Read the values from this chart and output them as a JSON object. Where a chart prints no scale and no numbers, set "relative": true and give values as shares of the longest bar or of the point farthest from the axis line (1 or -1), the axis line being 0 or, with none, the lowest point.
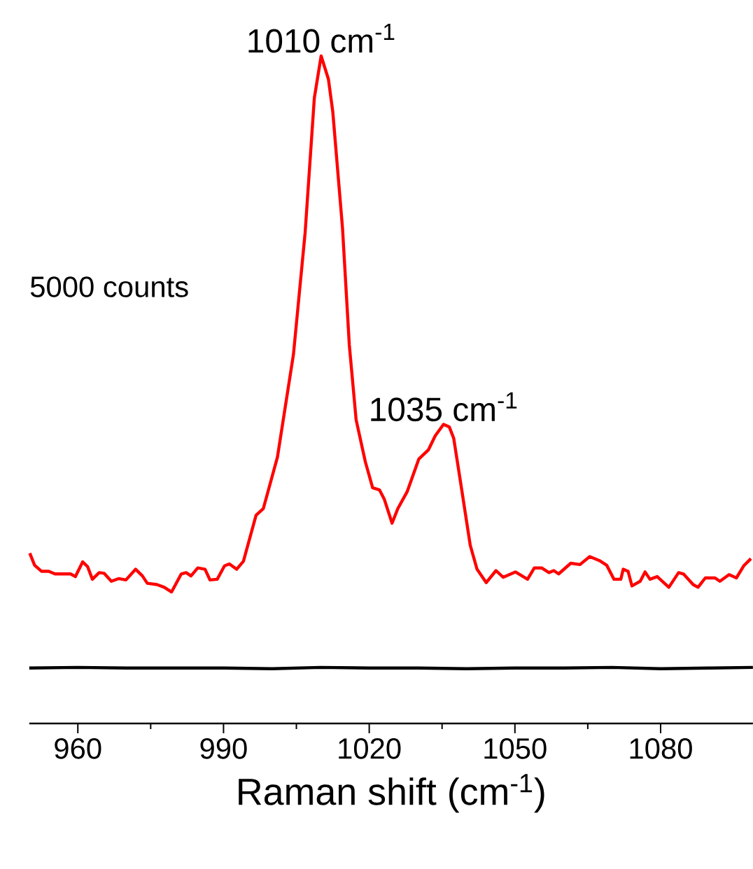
{
  "chart_data": {
    "type": "line",
    "xlabel": "Raman shift (cm$^{-1}$)",
    "relative": true,
    "xlim": [
      950,
      1099
    ],
    "xticks": [
      960,
      990,
      1020,
      1050,
      1080
    ],
    "annotations": [
      {
        "text": "1010 cm$^{-1}$",
        "x": 1010.1,
        "y": 1.0
      },
      {
        "text": "1035 cm$^{-1}$",
        "x": 1035.3,
        "y": 0.448
      },
      "5000 counts"
    ],
    "series": [
      {
        "color": "#ff0000",
        "x": [
          950.1,
          951.1,
          952.5,
          954.0,
          955.3,
          958.5,
          959.5,
          961.0,
          962.0,
          963.0,
          964.4,
          965.4,
          966.9,
          968.4,
          969.9,
          971.9,
          973.3,
          974.3,
          976.3,
          977.8,
          979.3,
          981.3,
          982.3,
          983.3,
          984.7,
          986.2,
          987.2,
          988.7,
          990.2,
          991.2,
          992.7,
          994.1,
          996.7,
          998.2,
          1001.1,
          1004.4,
          1006.8,
          1008.7,
          1010.1,
          1011.6,
          1012.5,
          1014.5,
          1015.9,
          1017.3,
          1019.2,
          1020.7,
          1022.1,
          1023.1,
          1024.7,
          1025.9,
          1027.8,
          1030.2,
          1032.2,
          1033.6,
          1035.3,
          1036.5,
          1037.4,
          1038.9,
          1040.8,
          1042.2,
          1044.1,
          1046.1,
          1047.6,
          1050.1,
          1052.6,
          1054.0,
          1055.5,
          1057.0,
          1058.0,
          1059.0,
          1061.5,
          1063.4,
          1065.4,
          1067.4,
          1068.9,
          1070.4,
          1071.8,
          1072.3,
          1073.3,
          1074.1,
          1075.8,
          1076.8,
          1077.8,
          1079.3,
          1081.7,
          1083.7,
          1084.7,
          1086.7,
          1087.7,
          1089.2,
          1091.2,
          1092.2,
          1094.1,
          1095.6,
          1097.1,
          1098.6
        ],
        "values": [
          0.255,
          0.237,
          0.228,
          0.228,
          0.224,
          0.224,
          0.22,
          0.242,
          0.235,
          0.216,
          0.226,
          0.225,
          0.213,
          0.217,
          0.215,
          0.231,
          0.221,
          0.21,
          0.208,
          0.204,
          0.197,
          0.224,
          0.226,
          0.221,
          0.233,
          0.231,
          0.215,
          0.216,
          0.236,
          0.239,
          0.231,
          0.243,
          0.312,
          0.322,
          0.399,
          0.553,
          0.735,
          0.937,
          1.0,
          0.965,
          0.916,
          0.742,
          0.567,
          0.455,
          0.392,
          0.353,
          0.35,
          0.336,
          0.3,
          0.322,
          0.347,
          0.396,
          0.41,
          0.431,
          0.448,
          0.444,
          0.427,
          0.357,
          0.267,
          0.231,
          0.211,
          0.229,
          0.219,
          0.227,
          0.216,
          0.233,
          0.233,
          0.226,
          0.229,
          0.224,
          0.24,
          0.238,
          0.25,
          0.244,
          0.237,
          0.216,
          0.216,
          0.231,
          0.228,
          0.206,
          0.213,
          0.227,
          0.216,
          0.22,
          0.204,
          0.226,
          0.224,
          0.208,
          0.204,
          0.218,
          0.218,
          0.213,
          0.223,
          0.218,
          0.236,
          0.247
        ]
      },
      {
        "color": "#000000",
        "x": [
          950,
          960,
          970,
          980,
          990,
          1000,
          1010,
          1020,
          1030,
          1040,
          1050,
          1060,
          1070,
          1080,
          1090,
          1099
        ],
        "values": [
          0.083,
          0.084,
          0.083,
          0.083,
          0.083,
          0.082,
          0.084,
          0.083,
          0.083,
          0.082,
          0.083,
          0.083,
          0.084,
          0.082,
          0.083,
          0.084
        ]
      }
    ]
  }
}
